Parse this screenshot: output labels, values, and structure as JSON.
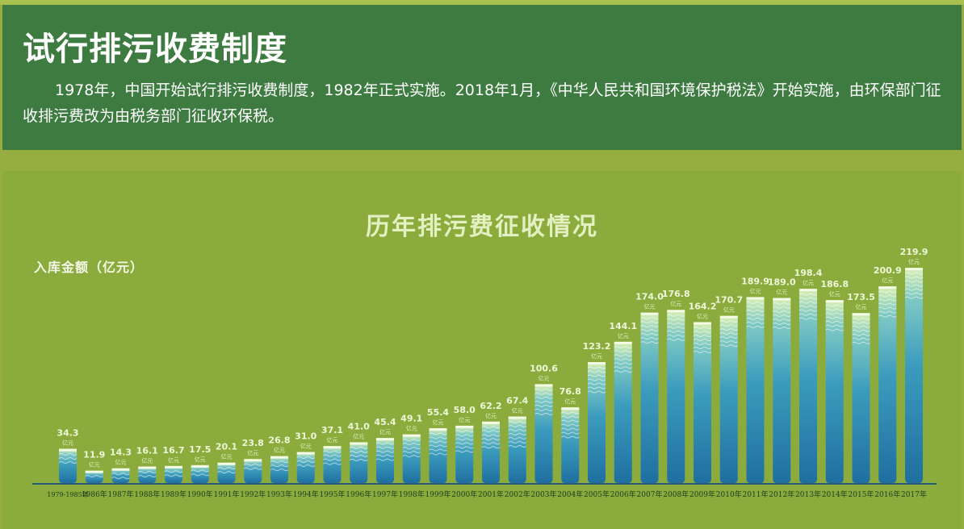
{
  "header": {
    "title": "试行排污收费制度",
    "description": "1978年，中国开始试行排污收费制度，1982年正式实施。2018年1月，《中华人民共和国环境保护税法》开始实施，由环保部门征收排污费改为由税务部门征收环保税。"
  },
  "colors": {
    "header_bg": "#3e7b40",
    "chart_bg": "#8bac3d",
    "bar_top": "#d8efb4",
    "bar_bottom": "#1f6fa0",
    "baseline": "#2a5a7a"
  },
  "chart_data": {
    "type": "bar",
    "title": "历年排污费征收情况",
    "ylabel": "入库金额（亿元）",
    "xlabel": "",
    "value_unit": "亿元",
    "ylim": [
      0,
      220
    ],
    "grid": false,
    "categories": [
      "1979-1985年",
      "1986年",
      "1987年",
      "1988年",
      "1989年",
      "1990年",
      "1991年",
      "1992年",
      "1993年",
      "1994年",
      "1995年",
      "1996年",
      "1997年",
      "1998年",
      "1999年",
      "2000年",
      "2001年",
      "2002年",
      "2003年",
      "2004年",
      "2005年",
      "2006年",
      "2007年",
      "2008年",
      "2009年",
      "2010年",
      "2011年",
      "2012年",
      "2013年",
      "2014年",
      "2015年",
      "2016年",
      "2017年"
    ],
    "values": [
      34.3,
      11.9,
      14.3,
      16.1,
      16.7,
      17.5,
      20.1,
      23.8,
      26.8,
      31.0,
      37.1,
      41.0,
      45.4,
      49.1,
      55.4,
      58.0,
      62.2,
      67.4,
      100.6,
      76.8,
      123.2,
      144.1,
      174.0,
      176.8,
      164.2,
      170.7,
      189.9,
      189.0,
      198.4,
      186.8,
      173.5,
      200.9,
      219.9
    ],
    "value_labels": [
      "34.3",
      "11.9",
      "14.3",
      "16.1",
      "16.7",
      "17.5",
      "20.1",
      "23.8",
      "26.8",
      "31.0",
      "37.1",
      "41.0",
      "45.4",
      "49.1",
      "55.4",
      "58.0",
      "62.2",
      "67.4",
      "100.6",
      "76.8",
      "123.2",
      "144.1",
      "174.0",
      "176.8",
      "164.2",
      "170.7",
      "189.9",
      "189.0",
      "198.4",
      "186.8",
      "173.5",
      "200.9",
      "219.9"
    ]
  }
}
